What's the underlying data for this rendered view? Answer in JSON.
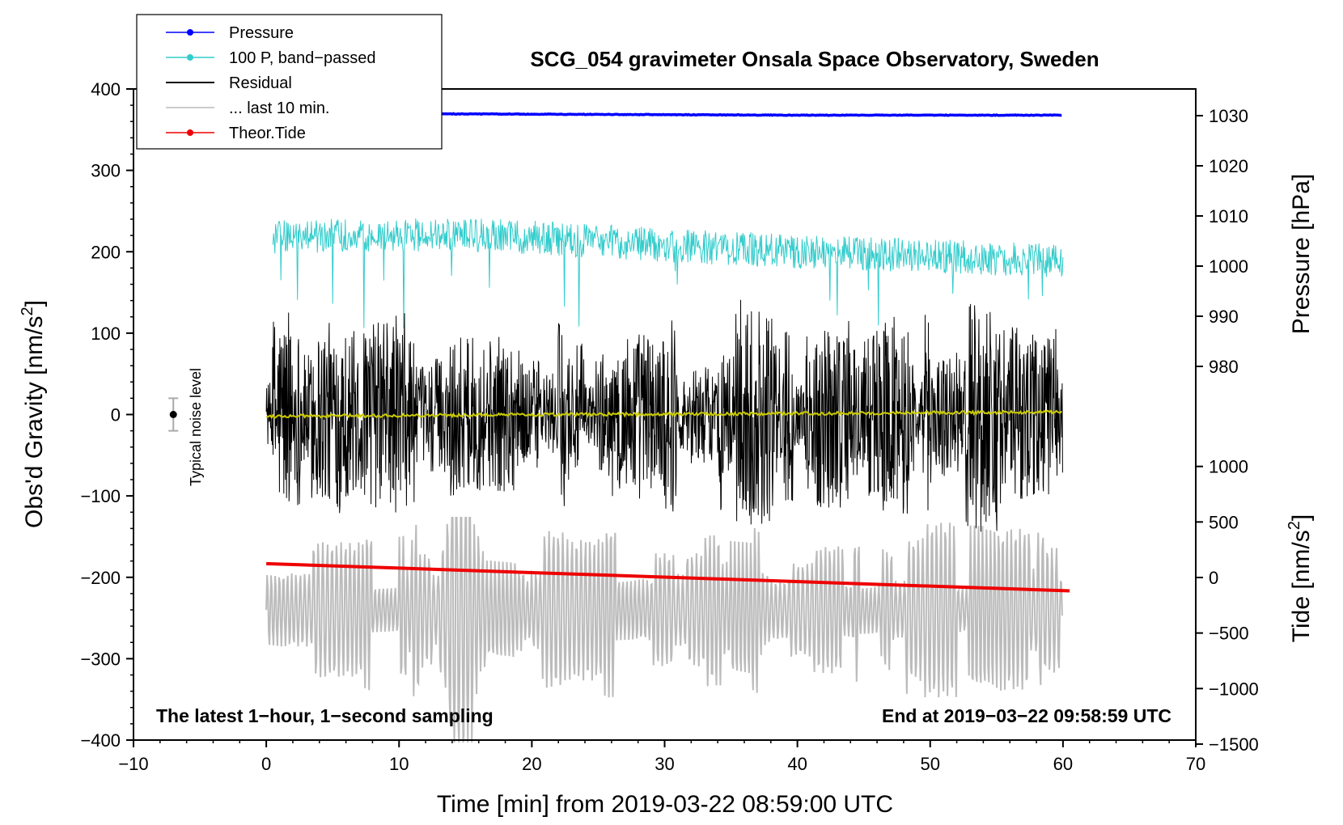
{
  "chart_data": {
    "type": "line",
    "title": "SCG_054 gravimeter Onsala Space Observatory, Sweden",
    "xlabel": "Time [min] from 2019-03-22 08:59:00 UTC",
    "ylabel_pre": "Obs'd Gravity [nm/s",
    "ylabel_sup": "2",
    "ylabel_post": "]",
    "xlim": [
      -10,
      70
    ],
    "ylim": [
      -400,
      400
    ],
    "xticks": [
      -10,
      0,
      10,
      20,
      30,
      40,
      50,
      60,
      70
    ],
    "xtick_labels": [
      "−10",
      "0",
      "10",
      "20",
      "30",
      "40",
      "50",
      "60",
      "70"
    ],
    "yticks": [
      400,
      300,
      200,
      100,
      0,
      -100,
      -200,
      -300,
      -400
    ],
    "ytick_labels": [
      "400",
      "300",
      "200",
      "100",
      "0",
      "−100",
      "−200",
      "−300",
      "−400"
    ],
    "pressure_axis": {
      "label": "Pressure [hPa]",
      "ticks": [
        1030,
        1020,
        1010,
        1000,
        990,
        980
      ],
      "tick_labels": [
        "1030",
        "1020",
        "1010",
        "1000",
        "990",
        "980"
      ]
    },
    "tide_axis": {
      "label_pre": "Tide [nm/s",
      "label_sup": "2",
      "label_post": "]",
      "ticks": [
        1000,
        500,
        0,
        -500,
        -1000,
        -1500
      ],
      "tick_labels": [
        "1000",
        "500",
        "0",
        "−500",
        "−1000",
        "−1500"
      ]
    },
    "legend": {
      "position": "top-left",
      "entries": [
        {
          "label": "Pressure",
          "color": "#0000ff",
          "marker": true
        },
        {
          "label": "100 P, band−passed",
          "color": "#33cccc",
          "marker": true
        },
        {
          "label": "Residual",
          "color": "#000000",
          "marker": false
        },
        {
          "label": "... last 10 min.",
          "color": "#bbbbbb",
          "marker": false
        },
        {
          "label": "Theor.Tide",
          "color": "#ee0000",
          "marker": true
        }
      ]
    },
    "noise_marker": {
      "label": "Typical noise level",
      "x": -7,
      "y": 0,
      "error": 20
    },
    "series": [
      {
        "name": "Pressure",
        "color": "#0000ff",
        "axis": "pressure",
        "x": [
          0,
          10,
          20,
          30,
          40,
          50,
          60
        ],
        "y": [
          1030.4,
          1030.4,
          1030.3,
          1030.2,
          1030.1,
          1030.1,
          1030.1
        ]
      },
      {
        "name": "100 P, band−passed",
        "color": "#33cccc",
        "axis": "gravity",
        "x": [
          0,
          10,
          20,
          30,
          40,
          50,
          60
        ],
        "y": [
          218,
          222,
          218,
          208,
          200,
          195,
          188
        ],
        "amplitude": 30
      },
      {
        "name": "Residual",
        "color": "#000000",
        "axis": "gravity",
        "x": [
          0,
          60
        ],
        "y": [
          0,
          0
        ],
        "amplitude": 150
      },
      {
        "name": "Residual (smoothed)",
        "color": "#cccc00",
        "axis": "gravity",
        "x": [
          0,
          60
        ],
        "y": [
          -2,
          3
        ]
      },
      {
        "name": "... last 10 min.",
        "color": "#bbbbbb",
        "axis": "gravity",
        "x": [
          0,
          60
        ],
        "y": [
          -240,
          -240
        ],
        "amplitude": 90
      },
      {
        "name": "Theor.Tide",
        "color": "#ee0000",
        "axis": "tide",
        "x": [
          0,
          60.5
        ],
        "y": [
          125,
          -120
        ]
      }
    ],
    "annotations": {
      "left": "The latest 1−hour, 1−second sampling",
      "right": "End at 2019−03−22 09:58:59 UTC"
    }
  }
}
